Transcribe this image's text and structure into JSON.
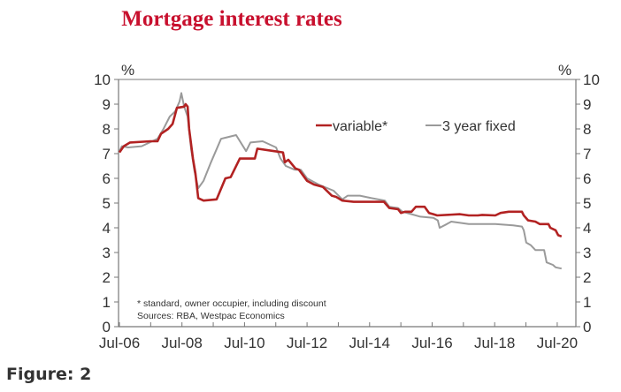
{
  "figure_label": "Figure: 2",
  "chart_data": {
    "type": "line",
    "title": "Mortgage interest rates",
    "ylabel_left": "%",
    "ylabel_right": "%",
    "ylim": [
      0,
      10
    ],
    "yticks": [
      0,
      1,
      2,
      3,
      4,
      5,
      6,
      7,
      8,
      9,
      10
    ],
    "xlim": [
      2006.5,
      2021.05
    ],
    "xticks": [
      {
        "x": 2006.5,
        "label": "Jul-06"
      },
      {
        "x": 2007.5,
        "label": ""
      },
      {
        "x": 2008.5,
        "label": "Jul-08"
      },
      {
        "x": 2009.5,
        "label": ""
      },
      {
        "x": 2010.5,
        "label": "Jul-10"
      },
      {
        "x": 2011.5,
        "label": ""
      },
      {
        "x": 2012.5,
        "label": "Jul-12"
      },
      {
        "x": 2013.5,
        "label": ""
      },
      {
        "x": 2014.5,
        "label": "Jul-14"
      },
      {
        "x": 2015.5,
        "label": ""
      },
      {
        "x": 2016.5,
        "label": "Jul-16"
      },
      {
        "x": 2017.5,
        "label": ""
      },
      {
        "x": 2018.5,
        "label": "Jul-18"
      },
      {
        "x": 2019.5,
        "label": ""
      },
      {
        "x": 2020.5,
        "label": "Jul-20"
      }
    ],
    "legend_position": "top-right",
    "notes": [
      "* standard, owner occupier, including discount",
      "Sources: RBA, Westpac Economics"
    ],
    "series": [
      {
        "name": "variable*",
        "color": "#b22222",
        "points": [
          [
            2006.5,
            7.05
          ],
          [
            2006.64,
            7.3
          ],
          [
            2006.84,
            7.45
          ],
          [
            2007.49,
            7.5
          ],
          [
            2007.72,
            7.5
          ],
          [
            2007.83,
            7.8
          ],
          [
            2008.06,
            8.0
          ],
          [
            2008.2,
            8.2
          ],
          [
            2008.34,
            8.85
          ],
          [
            2008.57,
            8.9
          ],
          [
            2008.62,
            9.0
          ],
          [
            2008.68,
            8.9
          ],
          [
            2008.73,
            8.0
          ],
          [
            2008.85,
            6.8
          ],
          [
            2008.93,
            6.2
          ],
          [
            2009.02,
            5.2
          ],
          [
            2009.19,
            5.1
          ],
          [
            2009.61,
            5.15
          ],
          [
            2009.89,
            6.0
          ],
          [
            2010.06,
            6.05
          ],
          [
            2010.35,
            6.8
          ],
          [
            2010.83,
            6.8
          ],
          [
            2010.91,
            7.2
          ],
          [
            2011.45,
            7.1
          ],
          [
            2011.73,
            7.05
          ],
          [
            2011.79,
            6.65
          ],
          [
            2011.9,
            6.75
          ],
          [
            2012.13,
            6.4
          ],
          [
            2012.24,
            6.35
          ],
          [
            2012.5,
            5.9
          ],
          [
            2012.72,
            5.75
          ],
          [
            2013.01,
            5.65
          ],
          [
            2013.29,
            5.3
          ],
          [
            2013.43,
            5.25
          ],
          [
            2013.63,
            5.1
          ],
          [
            2013.99,
            5.05
          ],
          [
            2014.96,
            5.05
          ],
          [
            2015.13,
            4.8
          ],
          [
            2015.41,
            4.75
          ],
          [
            2015.5,
            4.6
          ],
          [
            2015.64,
            4.65
          ],
          [
            2015.84,
            4.65
          ],
          [
            2015.98,
            4.85
          ],
          [
            2016.26,
            4.85
          ],
          [
            2016.4,
            4.6
          ],
          [
            2016.54,
            4.55
          ],
          [
            2016.66,
            4.5
          ],
          [
            2017.39,
            4.55
          ],
          [
            2017.67,
            4.5
          ],
          [
            2017.96,
            4.5
          ],
          [
            2018.1,
            4.52
          ],
          [
            2018.52,
            4.5
          ],
          [
            2018.69,
            4.6
          ],
          [
            2018.95,
            4.65
          ],
          [
            2019.37,
            4.65
          ],
          [
            2019.43,
            4.5
          ],
          [
            2019.57,
            4.3
          ],
          [
            2019.8,
            4.25
          ],
          [
            2019.94,
            4.15
          ],
          [
            2020.22,
            4.15
          ],
          [
            2020.28,
            4.0
          ],
          [
            2020.45,
            3.9
          ],
          [
            2020.53,
            3.7
          ],
          [
            2020.64,
            3.65
          ]
        ]
      },
      {
        "name": "3 year fixed",
        "color": "#9a9a9a",
        "points": [
          [
            2006.5,
            7.1
          ],
          [
            2006.58,
            7.3
          ],
          [
            2006.78,
            7.25
          ],
          [
            2007.21,
            7.3
          ],
          [
            2007.55,
            7.5
          ],
          [
            2007.72,
            7.6
          ],
          [
            2007.91,
            8.0
          ],
          [
            2008.11,
            8.5
          ],
          [
            2008.28,
            8.7
          ],
          [
            2008.42,
            9.1
          ],
          [
            2008.48,
            9.45
          ],
          [
            2008.57,
            8.9
          ],
          [
            2008.68,
            8.5
          ],
          [
            2008.79,
            7.2
          ],
          [
            2008.9,
            6.3
          ],
          [
            2009.02,
            5.6
          ],
          [
            2009.19,
            5.9
          ],
          [
            2009.41,
            6.6
          ],
          [
            2009.75,
            7.6
          ],
          [
            2010.23,
            7.75
          ],
          [
            2010.55,
            7.1
          ],
          [
            2010.69,
            7.45
          ],
          [
            2011.08,
            7.5
          ],
          [
            2011.51,
            7.25
          ],
          [
            2011.65,
            6.8
          ],
          [
            2011.82,
            6.5
          ],
          [
            2012.1,
            6.35
          ],
          [
            2012.3,
            6.35
          ],
          [
            2012.5,
            6.0
          ],
          [
            2012.87,
            5.75
          ],
          [
            2013.35,
            5.5
          ],
          [
            2013.63,
            5.15
          ],
          [
            2013.8,
            5.3
          ],
          [
            2014.19,
            5.3
          ],
          [
            2014.56,
            5.2
          ],
          [
            2014.99,
            5.1
          ],
          [
            2015.13,
            4.85
          ],
          [
            2015.41,
            4.8
          ],
          [
            2015.55,
            4.65
          ],
          [
            2015.84,
            4.55
          ],
          [
            2016.12,
            4.45
          ],
          [
            2016.54,
            4.4
          ],
          [
            2016.68,
            4.3
          ],
          [
            2016.74,
            4.0
          ],
          [
            2016.97,
            4.15
          ],
          [
            2017.11,
            4.25
          ],
          [
            2017.39,
            4.2
          ],
          [
            2017.67,
            4.15
          ],
          [
            2018.52,
            4.15
          ],
          [
            2019.09,
            4.1
          ],
          [
            2019.37,
            4.05
          ],
          [
            2019.43,
            3.9
          ],
          [
            2019.51,
            3.4
          ],
          [
            2019.65,
            3.3
          ],
          [
            2019.8,
            3.1
          ],
          [
            2020.08,
            3.1
          ],
          [
            2020.16,
            2.6
          ],
          [
            2020.36,
            2.5
          ],
          [
            2020.45,
            2.4
          ],
          [
            2020.64,
            2.35
          ]
        ]
      }
    ]
  }
}
